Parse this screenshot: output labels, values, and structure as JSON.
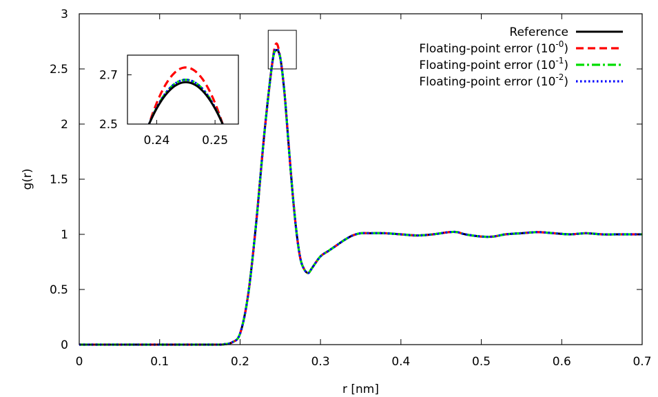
{
  "chart_data": {
    "type": "line",
    "xlabel": "r [nm]",
    "ylabel": "g(r)",
    "xlim": [
      0,
      0.7
    ],
    "ylim": [
      0,
      3
    ],
    "xticks": [
      0,
      0.1,
      0.2,
      0.3,
      0.4,
      0.5,
      0.6,
      0.7
    ],
    "xtick_labels": [
      "0",
      "0.1",
      "0.2",
      "0.3",
      "0.4",
      "0.5",
      "0.6",
      "0.7"
    ],
    "yticks": [
      0,
      0.5,
      1,
      1.5,
      2,
      2.5,
      3
    ],
    "ytick_labels": [
      "0",
      "0.5",
      "1",
      "1.5",
      "2",
      "2.5",
      "3"
    ],
    "grid": false,
    "legend_position": "top-right",
    "series": [
      {
        "name": "Reference",
        "name_parts": [
          "Reference",
          "",
          ""
        ],
        "color": "#000000",
        "dash": "solid"
      },
      {
        "name": "Floating-point error (10^-0)",
        "name_parts": [
          "Floating-point error (10",
          "-0",
          ")"
        ],
        "color": "#ff0000",
        "dash": "dashed"
      },
      {
        "name": "Floating-point error (10^-1)",
        "name_parts": [
          "Floating-point error (10",
          "-1",
          ")"
        ],
        "color": "#00dd00",
        "dash": "dash-dot"
      },
      {
        "name": "Floating-point error (10^-2)",
        "name_parts": [
          "Floating-point error (10",
          "-2",
          ")"
        ],
        "color": "#0000ff",
        "dash": "dotted"
      }
    ],
    "x": [
      0,
      0.1,
      0.17,
      0.18,
      0.19,
      0.2,
      0.21,
      0.22,
      0.23,
      0.24,
      0.245,
      0.25,
      0.255,
      0.26,
      0.265,
      0.27,
      0.275,
      0.28,
      0.285,
      0.29,
      0.3,
      0.31,
      0.32,
      0.33,
      0.34,
      0.35,
      0.36,
      0.38,
      0.4,
      0.42,
      0.44,
      0.46,
      0.47,
      0.48,
      0.5,
      0.515,
      0.53,
      0.55,
      0.57,
      0.59,
      0.61,
      0.63,
      0.65,
      0.67,
      0.7
    ],
    "reference_y": [
      0,
      0,
      0,
      0.003,
      0.02,
      0.1,
      0.45,
      1.1,
      1.9,
      2.55,
      2.67,
      2.6,
      2.3,
      1.85,
      1.4,
      1.03,
      0.78,
      0.68,
      0.65,
      0.7,
      0.8,
      0.85,
      0.9,
      0.95,
      0.99,
      1.01,
      1.01,
      1.01,
      1.0,
      0.99,
      1.0,
      1.02,
      1.02,
      1.0,
      0.98,
      0.98,
      1.0,
      1.01,
      1.02,
      1.01,
      1.0,
      1.01,
      1.0,
      1.0,
      1.0
    ],
    "inset": {
      "xlim": [
        0.235,
        0.254
      ],
      "ylim": [
        2.5,
        2.78
      ],
      "xticks": [
        0.24,
        0.25
      ],
      "xtick_labels": [
        "0.24",
        "0.25"
      ],
      "yticks": [
        2.5,
        2.7
      ],
      "ytick_labels": [
        "2.5",
        "2.7"
      ],
      "zoom_box": {
        "x": [
          0.235,
          0.27
        ],
        "y": [
          2.5,
          2.85
        ]
      },
      "peak_x": 0.245,
      "peak_y": [
        2.67,
        2.73,
        2.68,
        2.68
      ]
    }
  }
}
